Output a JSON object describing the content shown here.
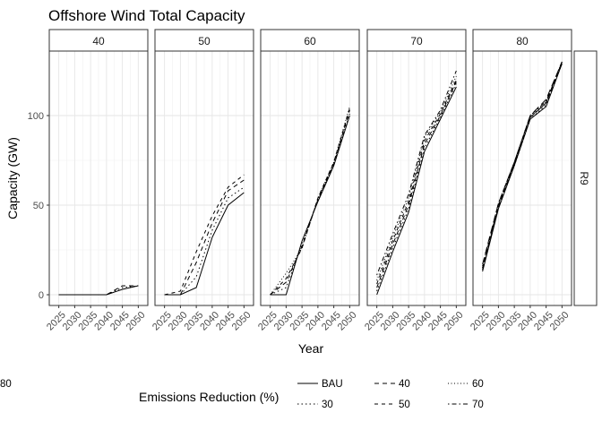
{
  "chart_data": {
    "type": "line",
    "title": "Offshore Wind Total Capacity",
    "xlabel": "Year",
    "ylabel": "Capacity (GW)",
    "x": [
      2025,
      2030,
      2035,
      2040,
      2045,
      2050
    ],
    "x_tick_labels": [
      "2025",
      "2030",
      "2035",
      "2040",
      "2045",
      "2050"
    ],
    "y_ticks": [
      0,
      50,
      100
    ],
    "ylim": [
      -6,
      136
    ],
    "xlim": [
      2022,
      2053
    ],
    "grid": true,
    "row_strip": "R9",
    "legend": {
      "title": "Emissions Reduction (%)",
      "placement": "bottom",
      "entries": [
        "BAU",
        "30",
        "40",
        "50",
        "60",
        "70",
        "80"
      ]
    },
    "linetypes": {
      "BAU": "solid",
      "30": "dotted",
      "40": "dashed",
      "50": "dashed2",
      "60": "dotted2",
      "70": "dotdash",
      "80": "longdash"
    },
    "panels": [
      {
        "label": "40",
        "series": [
          {
            "name": "BAU",
            "values": [
              0,
              0,
              0,
              0,
              3,
              5
            ]
          },
          {
            "name": "30",
            "values": [
              0,
              0,
              0,
              0,
              4,
              5
            ]
          },
          {
            "name": "40",
            "values": [
              0,
              0,
              0,
              0,
              5,
              5
            ]
          }
        ]
      },
      {
        "label": "50",
        "series": [
          {
            "name": "BAU",
            "values": [
              0,
              0,
              4,
              32,
              50,
              57
            ]
          },
          {
            "name": "30",
            "values": [
              0,
              0,
              10,
              36,
              54,
              60
            ]
          },
          {
            "name": "40",
            "values": [
              0,
              0,
              18,
              40,
              58,
              64
            ]
          },
          {
            "name": "50",
            "values": [
              0,
              2,
              24,
              44,
              60,
              67
            ]
          }
        ]
      },
      {
        "label": "60",
        "series": [
          {
            "name": "BAU",
            "values": [
              0,
              0,
              30,
              52,
              72,
              100
            ]
          },
          {
            "name": "30",
            "values": [
              0,
              4,
              28,
              53,
              73,
              101
            ]
          },
          {
            "name": "40",
            "values": [
              0,
              7,
              27,
              53,
              73,
              103
            ]
          },
          {
            "name": "50",
            "values": [
              0,
              9,
              26,
              54,
              74,
              104
            ]
          },
          {
            "name": "60",
            "values": [
              0,
              12,
              26,
              54,
              74,
              105
            ]
          }
        ]
      },
      {
        "label": "70",
        "series": [
          {
            "name": "BAU",
            "values": [
              0,
              24,
              46,
              80,
              98,
              116
            ]
          },
          {
            "name": "30",
            "values": [
              2,
              26,
              48,
              82,
              99,
              118
            ]
          },
          {
            "name": "40",
            "values": [
              4,
              28,
              50,
              84,
              100,
              119
            ]
          },
          {
            "name": "50",
            "values": [
              6,
              30,
              52,
              86,
              101,
              120
            ]
          },
          {
            "name": "60",
            "values": [
              8,
              32,
              54,
              88,
              102,
              122
            ]
          },
          {
            "name": "70",
            "values": [
              11,
              34,
              56,
              89,
              103,
              125
            ]
          }
        ]
      },
      {
        "label": "80",
        "series": [
          {
            "name": "BAU",
            "values": [
              13,
              48,
              72,
              98,
              105,
              129
            ]
          },
          {
            "name": "30",
            "values": [
              14,
              49,
              72,
              98,
              106,
              129
            ]
          },
          {
            "name": "40",
            "values": [
              14,
              49,
              73,
              99,
              107,
              129
            ]
          },
          {
            "name": "50",
            "values": [
              15,
              50,
              73,
              99,
              107,
              130
            ]
          },
          {
            "name": "60",
            "values": [
              15,
              50,
              73,
              99,
              108,
              130
            ]
          },
          {
            "name": "70",
            "values": [
              16,
              51,
              74,
              100,
              108,
              130
            ]
          },
          {
            "name": "80",
            "values": [
              17,
              51,
              74,
              100,
              109,
              130
            ]
          }
        ]
      }
    ]
  }
}
